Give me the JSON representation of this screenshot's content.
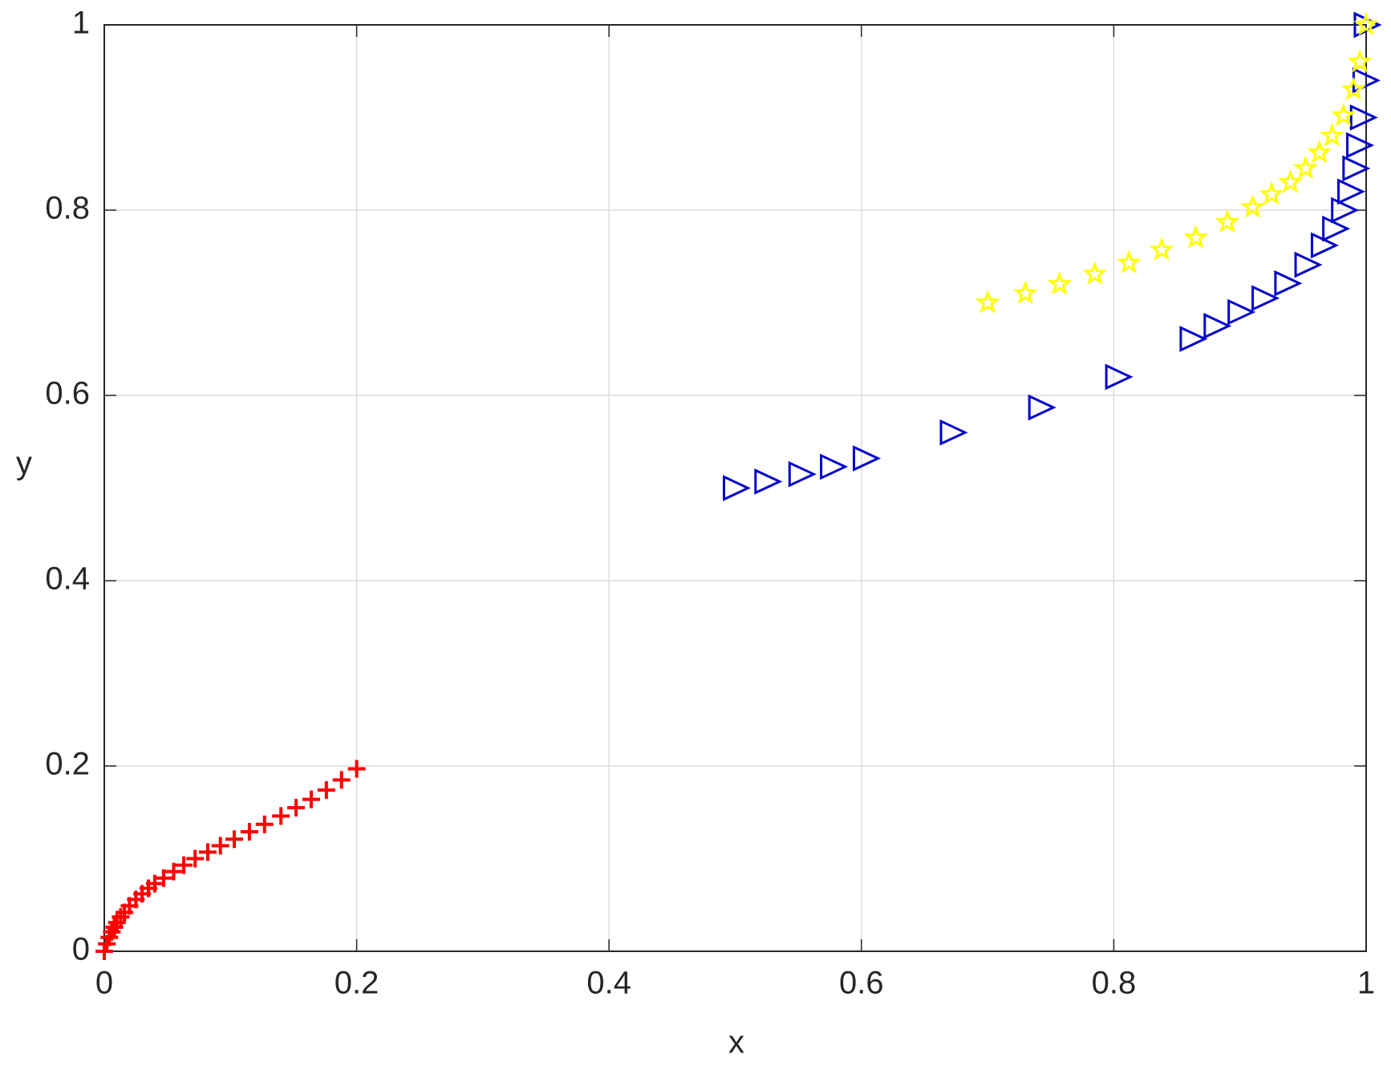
{
  "chart_data": {
    "type": "scatter",
    "xlabel": "x",
    "ylabel": "y",
    "xlim": [
      0,
      1
    ],
    "ylim": [
      0,
      1
    ],
    "xticks": [
      0,
      0.2,
      0.4,
      0.6,
      0.8,
      1
    ],
    "yticks": [
      0,
      0.2,
      0.4,
      0.6,
      0.8,
      1
    ],
    "grid": true,
    "series": [
      {
        "color": "#ff0000",
        "marker": "plus",
        "x": [
          0,
          0.002,
          0.004,
          0.006,
          0.008,
          0.01,
          0.013,
          0.016,
          0.02,
          0.025,
          0.03,
          0.035,
          0.04,
          0.047,
          0.055,
          0.063,
          0.072,
          0.082,
          0.092,
          0.103,
          0.115,
          0.127,
          0.14,
          0.152,
          0.164,
          0.176,
          0.188,
          0.2
        ],
        "y": [
          0,
          0.008,
          0.015,
          0.021,
          0.026,
          0.031,
          0.037,
          0.042,
          0.049,
          0.056,
          0.062,
          0.068,
          0.073,
          0.079,
          0.086,
          0.093,
          0.1,
          0.107,
          0.114,
          0.121,
          0.129,
          0.137,
          0.146,
          0.155,
          0.164,
          0.174,
          0.185,
          0.197
        ]
      },
      {
        "color": "#0000cc",
        "marker": "triangle-right",
        "x": [
          0.5,
          0.525,
          0.552,
          0.577,
          0.603,
          0.672,
          0.742,
          0.803,
          0.862,
          0.881,
          0.9,
          0.919,
          0.937,
          0.953,
          0.966,
          0.975,
          0.982,
          0.987,
          0.991,
          0.994,
          0.997,
          0.999,
          1.0
        ],
        "y": [
          0.5,
          0.507,
          0.515,
          0.523,
          0.532,
          0.56,
          0.587,
          0.62,
          0.661,
          0.675,
          0.69,
          0.705,
          0.721,
          0.741,
          0.762,
          0.78,
          0.8,
          0.82,
          0.845,
          0.87,
          0.9,
          0.94,
          1.0
        ]
      },
      {
        "color": "#ffff00",
        "marker": "star",
        "x": [
          0.7,
          0.73,
          0.757,
          0.785,
          0.812,
          0.838,
          0.865,
          0.89,
          0.91,
          0.925,
          0.94,
          0.952,
          0.963,
          0.973,
          0.982,
          0.99,
          0.995,
          1.0
        ],
        "y": [
          0.7,
          0.71,
          0.72,
          0.731,
          0.743,
          0.757,
          0.77,
          0.787,
          0.803,
          0.817,
          0.83,
          0.845,
          0.862,
          0.88,
          0.902,
          0.93,
          0.96,
          1.0
        ]
      }
    ]
  }
}
